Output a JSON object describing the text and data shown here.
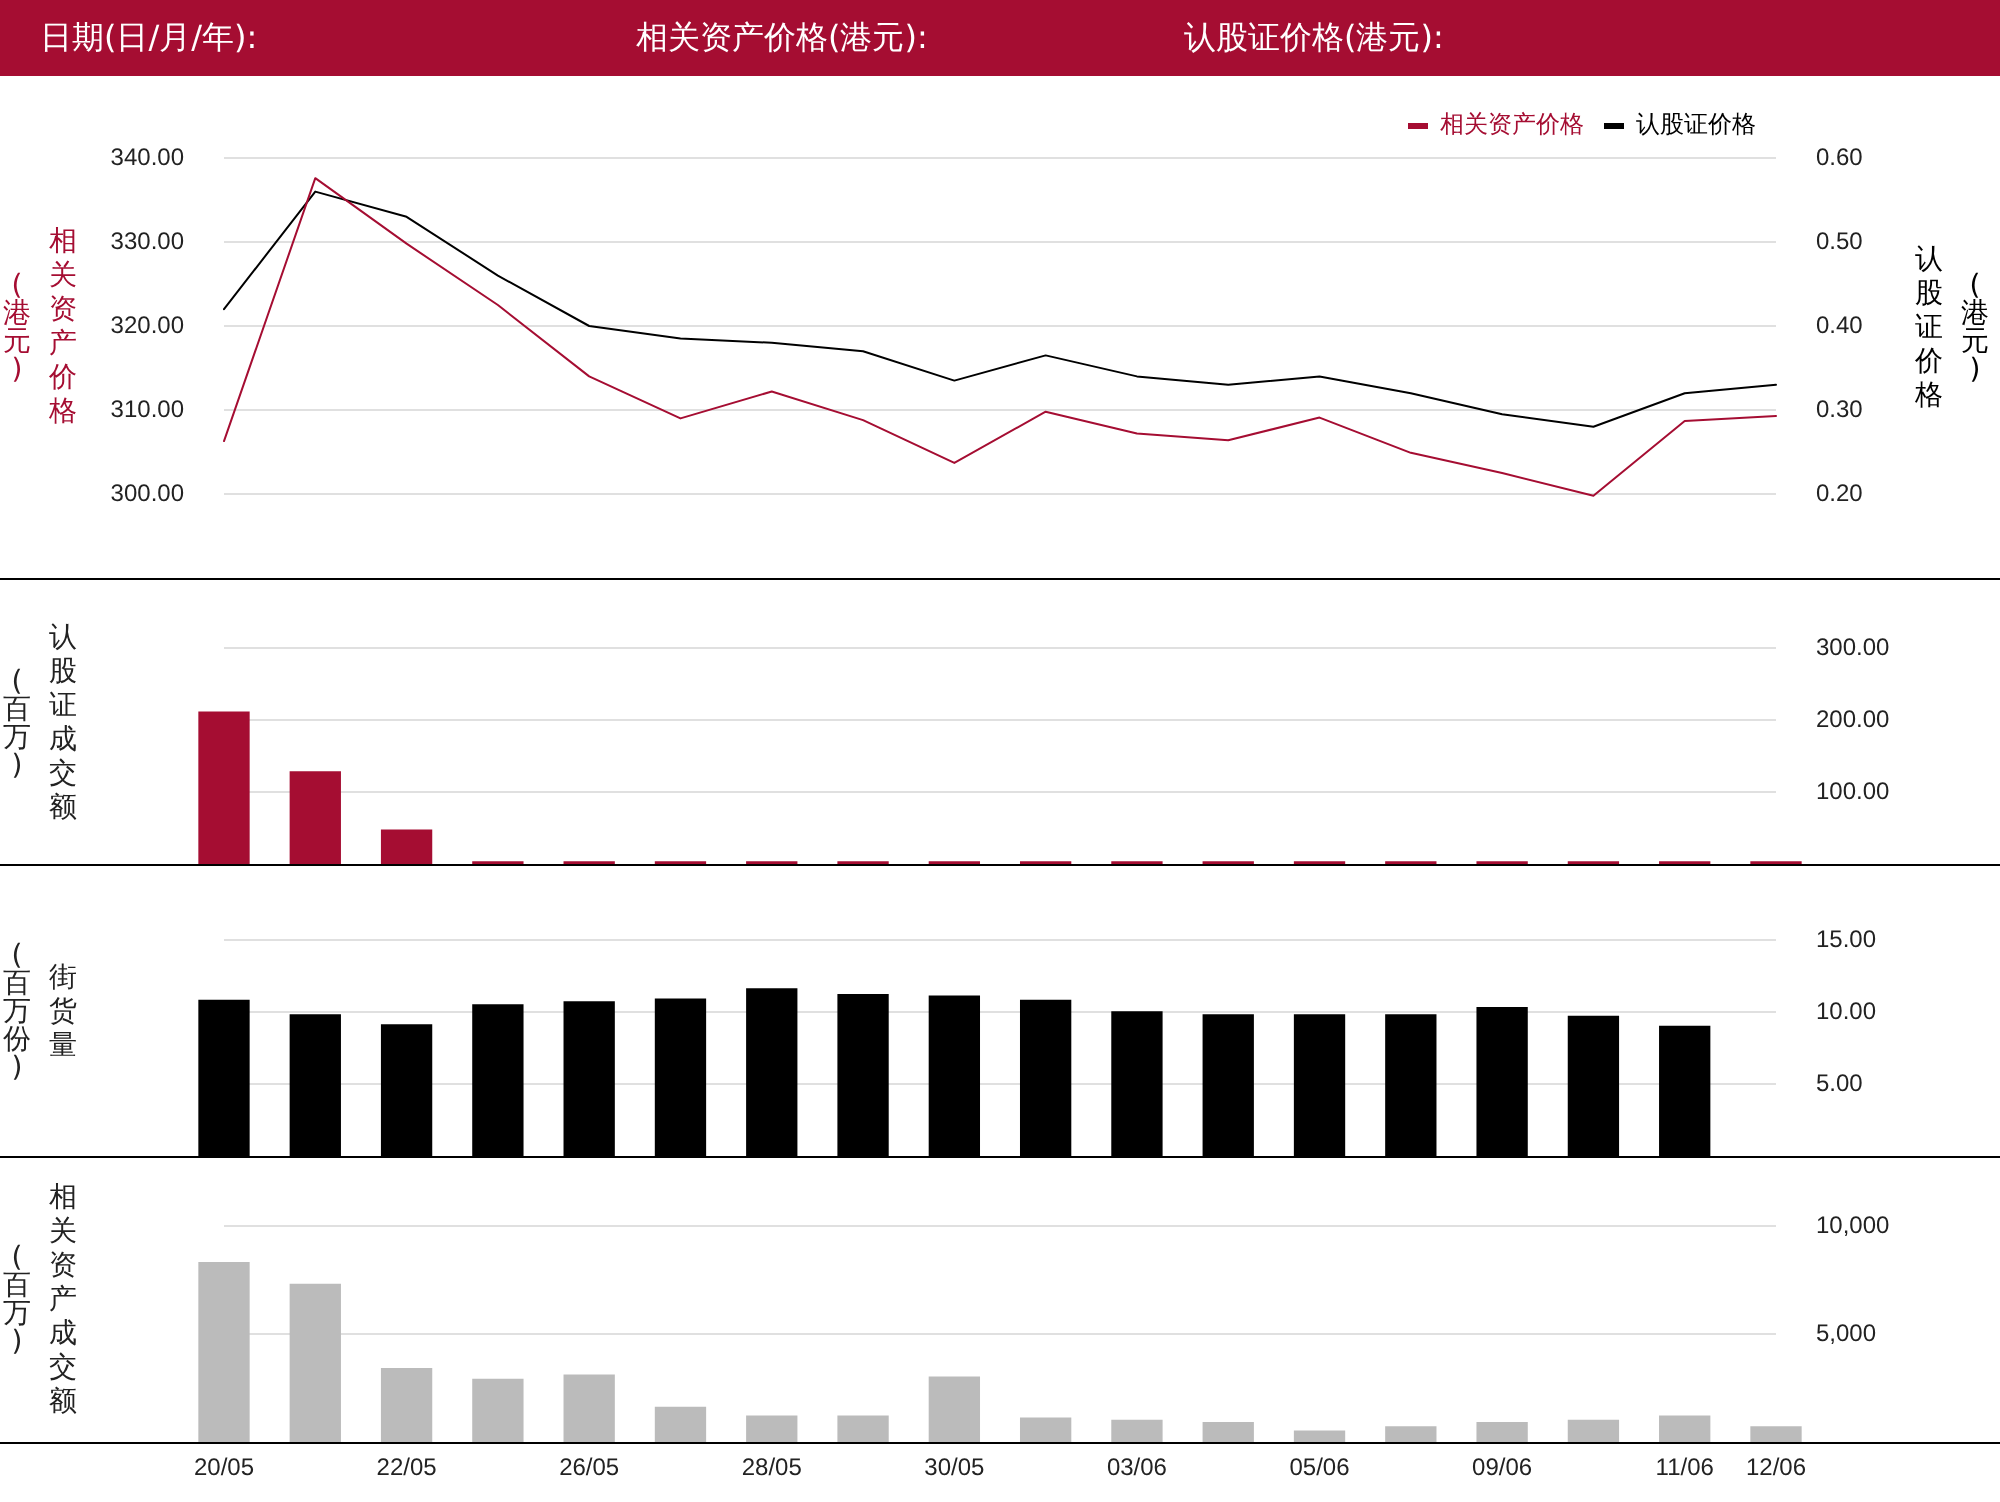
{
  "chart_data": [
    {
      "type": "line",
      "annotations": [
        "日期(日/月/年):",
        "相关资产价格(港元):",
        "认股证价格(港元):"
      ],
      "categories": [
        null,
        null,
        null,
        null,
        null,
        null,
        null,
        null,
        null,
        null,
        null,
        null,
        null,
        null,
        null,
        null,
        null,
        null
      ],
      "series": [
        {
          "name": "相关资产价格",
          "color": "#a50d32",
          "values": [
            306.3,
            337.6,
            329.8,
            322.5,
            314.0,
            309.0,
            312.2,
            308.8,
            303.7,
            309.8,
            307.2,
            306.4,
            309.1,
            304.9,
            302.5,
            299.8,
            308.7,
            309.3
          ]
        },
        {
          "name": "认股证价格",
          "color": "#000000",
          "axis": "y2",
          "values": [
            0.42,
            0.56,
            0.53,
            0.46,
            0.4,
            0.385,
            0.38,
            0.37,
            0.335,
            0.365,
            0.34,
            0.33,
            0.34,
            0.32,
            0.295,
            0.28,
            0.32,
            0.33
          ]
        }
      ],
      "ylabel": "相关资产价格(港元)",
      "y2label": "认股证价格(港元)",
      "ylim": [
        290,
        340
      ],
      "yticks": [
        {
          "value": 300,
          "label": "300.00"
        },
        {
          "value": 310,
          "label": "310.00"
        },
        {
          "value": 320,
          "label": "320.00"
        },
        {
          "value": 330,
          "label": "330.00"
        },
        {
          "value": 340,
          "label": "340.00"
        }
      ],
      "y2lim": [
        0.1,
        0.6
      ],
      "y2ticks": [
        {
          "value": 0.2,
          "label": "0.20"
        },
        {
          "value": 0.3,
          "label": "0.30"
        },
        {
          "value": 0.4,
          "label": "0.40"
        },
        {
          "value": 0.5,
          "label": "0.50"
        },
        {
          "value": 0.6,
          "label": "0.60"
        }
      ],
      "grid": "y",
      "legend": "top right",
      "marker": "none",
      "tick_labels": "y"
    },
    {
      "type": "bar",
      "categories": [
        null,
        null,
        null,
        null,
        null,
        null,
        null,
        null,
        null,
        null,
        null,
        null,
        null,
        null,
        null,
        null,
        null,
        null
      ],
      "values": [
        211,
        128,
        47,
        3,
        3,
        3,
        3,
        3,
        3,
        3,
        3,
        3,
        3,
        3,
        3,
        3,
        3,
        3
      ],
      "color": "#a50d32",
      "ylabel": "认股证成交额(百万)",
      "ylim": [
        0,
        300
      ],
      "yticks": [
        {
          "value": 100,
          "label": "100.00"
        },
        {
          "value": 200,
          "label": "200.00"
        },
        {
          "value": 300,
          "label": "300.00"
        }
      ],
      "grid": "y",
      "tick_labels": "y"
    },
    {
      "type": "bar",
      "categories": [
        null,
        null,
        null,
        null,
        null,
        null,
        null,
        null,
        null,
        null,
        null,
        null,
        null,
        null,
        null,
        null,
        null,
        null
      ],
      "values": [
        10.8,
        9.8,
        9.1,
        10.5,
        10.7,
        10.9,
        11.6,
        11.2,
        11.1,
        10.8,
        10.0,
        9.8,
        9.8,
        9.8,
        10.3,
        9.7,
        9.0,
        null
      ],
      "color": "#000000",
      "ylabel": "街货量(百万份)",
      "ylim": [
        0,
        15
      ],
      "yticks": [
        {
          "value": 5,
          "label": "5.00"
        },
        {
          "value": 10,
          "label": "10.00"
        },
        {
          "value": 15,
          "label": "15.00"
        }
      ],
      "grid": "y",
      "tick_labels": "y"
    },
    {
      "type": "bar",
      "categories": [
        "20/05",
        null,
        "22/05",
        null,
        "26/05",
        null,
        "28/05",
        null,
        "30/05",
        null,
        "03/06",
        null,
        "05/06",
        null,
        "09/06",
        null,
        "11/06",
        "12/06"
      ],
      "values": [
        8300,
        7300,
        3400,
        2900,
        3100,
        1600,
        1200,
        1200,
        3000,
        1100,
        1000,
        900,
        500,
        700,
        900,
        1000,
        1200,
        700
      ],
      "color": "#bbbbbb",
      "ylabel": "相关资产成交额(百万)",
      "ylim": [
        0,
        10000
      ],
      "yticks": [
        {
          "value": 5000,
          "label": "5,000"
        },
        {
          "value": 10000,
          "label": "10,000"
        }
      ],
      "grid": "y"
    }
  ]
}
